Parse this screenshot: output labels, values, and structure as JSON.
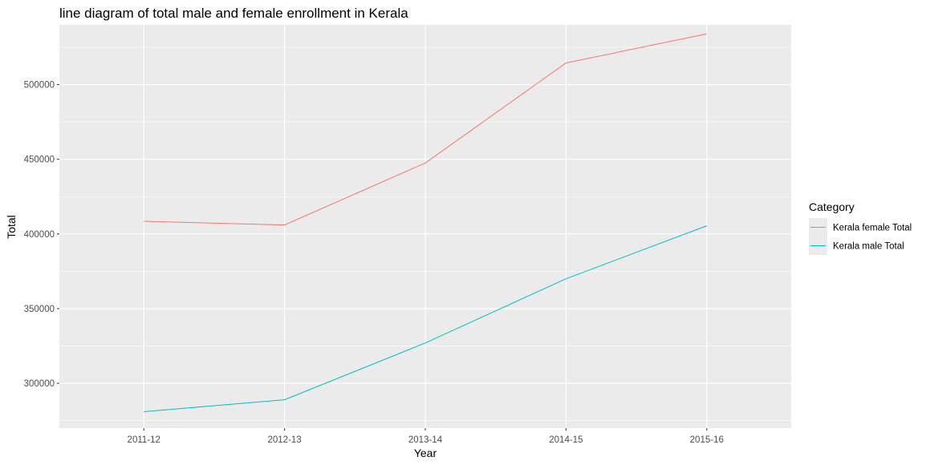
{
  "chart_data": {
    "type": "line",
    "title": "line diagram of total male and female enrollment in Kerala",
    "xlabel": "Year",
    "ylabel": "Total",
    "categories": [
      "2011-12",
      "2012-13",
      "2013-14",
      "2014-15",
      "2015-16"
    ],
    "y_ticks": [
      "300000",
      "350000",
      "400000",
      "450000",
      "500000"
    ],
    "ylim": [
      270000,
      540000
    ],
    "grid": true,
    "legend": {
      "title": "Category",
      "position": "right"
    },
    "series": [
      {
        "name": "Kerala female Total",
        "color": "#F8766D",
        "values": [
          408500,
          406000,
          447500,
          514500,
          534000
        ]
      },
      {
        "name": "Kerala male Total",
        "color": "#00BFC4",
        "values": [
          281000,
          289000,
          327000,
          370000,
          405500
        ]
      }
    ]
  }
}
